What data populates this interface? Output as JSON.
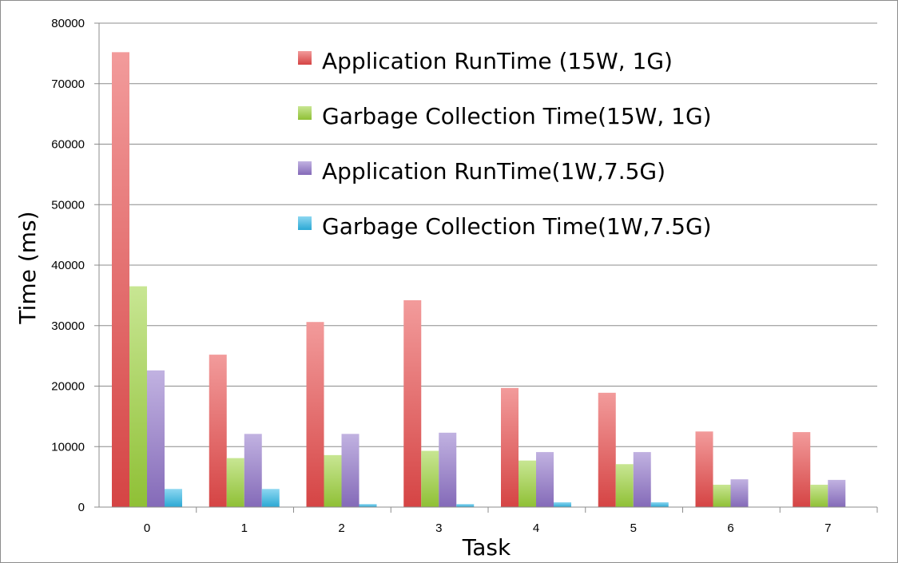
{
  "chart_data": {
    "type": "bar",
    "xlabel": "Task",
    "ylabel": "Time  (ms)",
    "categories": [
      "0",
      "1",
      "2",
      "3",
      "4",
      "5",
      "6",
      "7"
    ],
    "ylim": [
      0,
      80000
    ],
    "yticks": [
      0,
      10000,
      20000,
      30000,
      40000,
      50000,
      60000,
      70000,
      80000
    ],
    "grid": true,
    "legend_position": "top-right",
    "series": [
      {
        "name": "Application RunTime (15W, 1G)",
        "color": "#e84a4a",
        "values": [
          75200,
          25200,
          30600,
          34200,
          19700,
          18900,
          12500,
          12400
        ]
      },
      {
        "name": "Garbage Collection Time(15W, 1G)",
        "color": "#9bd13a",
        "values": [
          36500,
          8100,
          8600,
          9300,
          7700,
          7100,
          3700,
          3700
        ]
      },
      {
        "name": "Application RunTime(1W,7.5G)",
        "color": "#8f73c8",
        "values": [
          22600,
          12100,
          12100,
          12300,
          9100,
          9100,
          4600,
          4500
        ]
      },
      {
        "name": "Garbage Collection Time(1W,7.5G)",
        "color": "#2fb7e6",
        "values": [
          3000,
          3000,
          500,
          500,
          800,
          800,
          0,
          0
        ]
      }
    ]
  }
}
